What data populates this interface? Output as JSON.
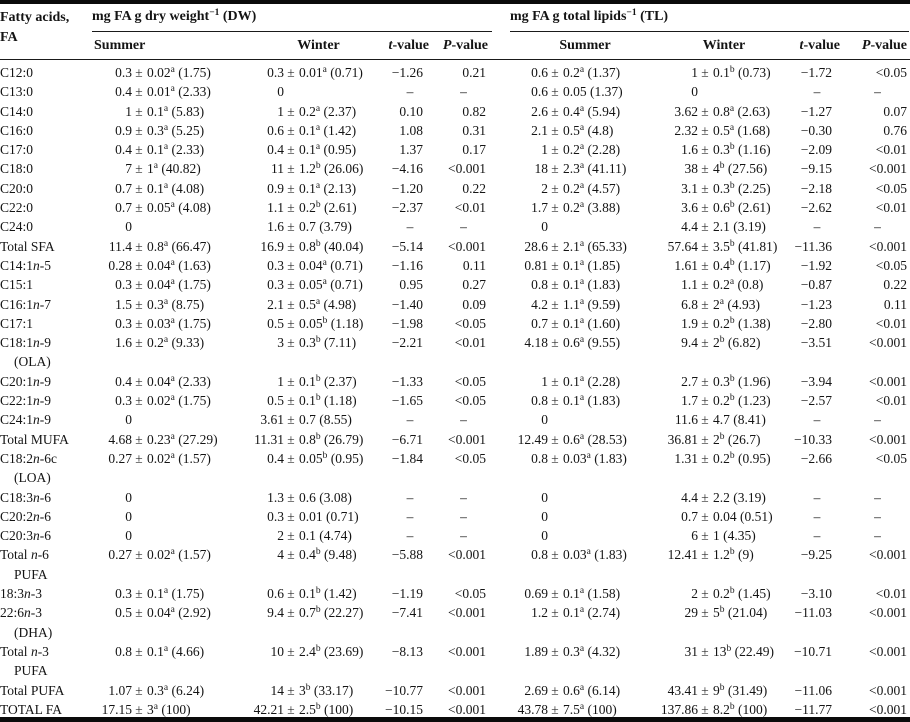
{
  "header": {
    "fa1": "Fatty acids,",
    "fa2": "FA",
    "dw_group": "mg FA g dry weight^−1^ (DW)",
    "tl_group": "mg FA g total lipids^−1^ (TL)",
    "sub": {
      "summer": "Summer",
      "winter": "Winter",
      "t": "*t*-value",
      "p": "*P*-value"
    }
  },
  "rows": [
    {
      "label": "C12:0",
      "dw": [
        "0.3 ± 0.02^a^ (1.75)",
        "0.3 ± 0.01^a^ (0.71)",
        "−1.26",
        "0.21"
      ],
      "tl": [
        "0.6 ± 0.2^a^ (1.37)",
        "1 ± 0.1^b^ (0.73)",
        "−1.72",
        "<0.05"
      ]
    },
    {
      "label": "C13:0",
      "dw": [
        "0.4 ± 0.01^a^ (2.33)",
        "0",
        "–",
        "–"
      ],
      "tl": [
        "0.6 ± 0.05 (1.37)",
        "0",
        "–",
        "–"
      ]
    },
    {
      "label": "C14:0",
      "dw": [
        "1 ± 0.1^a^ (5.83)",
        "1 ± 0.2^a^ (2.37)",
        "0.10",
        "0.82"
      ],
      "tl": [
        "2.6 ± 0.4^a^ (5.94)",
        "3.62 ± 0.8^a^ (2.63)",
        "−1.27",
        "0.07"
      ]
    },
    {
      "label": "C16:0",
      "dw": [
        "0.9 ± 0.3^a^ (5.25)",
        "0.6 ± 0.1^a^ (1.42)",
        "1.08",
        "0.31"
      ],
      "tl": [
        "2.1 ± 0.5^a^ (4.8)",
        "2.32 ± 0.5^a^ (1.68)",
        "−0.30",
        "0.76"
      ]
    },
    {
      "label": "C17:0",
      "dw": [
        "0.4 ± 0.1^a^ (2.33)",
        "0.4 ± 0.1^a^ (0.95)",
        "1.37",
        "0.17"
      ],
      "tl": [
        "1 ± 0.2^a^ (2.28)",
        "1.6 ± 0.3^b^ (1.16)",
        "−2.09",
        "<0.01"
      ]
    },
    {
      "label": "C18:0",
      "dw": [
        "7 ± 1^a^ (40.82)",
        "11 ± 1.2^b^ (26.06)",
        "−4.16",
        "<0.001"
      ],
      "tl": [
        "18 ± 2.3^a^ (41.11)",
        "38 ± 4^b^ (27.56)",
        "−9.15",
        "<0.001"
      ]
    },
    {
      "label": "C20:0",
      "dw": [
        "0.7 ± 0.1^a^ (4.08)",
        "0.9 ± 0.1^a^ (2.13)",
        "−1.20",
        "0.22"
      ],
      "tl": [
        "2 ± 0.2^a^ (4.57)",
        "3.1 ± 0.3^b^ (2.25)",
        "−2.18",
        "<0.05"
      ]
    },
    {
      "label": "C22:0",
      "dw": [
        "0.7 ± 0.05^a^ (4.08)",
        "1.1 ± 0.2^b^ (2.61)",
        "−2.37",
        "<0.01"
      ],
      "tl": [
        "1.7 ± 0.2^a^ (3.88)",
        "3.6 ± 0.6^b^ (2.61)",
        "−2.62",
        "<0.01"
      ]
    },
    {
      "label": "C24:0",
      "dw": [
        "0",
        "1.6 ± 0.7 (3.79)",
        "–",
        "–"
      ],
      "tl": [
        "0",
        "4.4 ± 2.1 (3.19)",
        "–",
        "–"
      ]
    },
    {
      "label": "Total SFA",
      "dw": [
        "11.4 ± 0.8^a^ (66.47)",
        "16.9 ± 0.8^b^ (40.04)",
        "−5.14",
        "<0.001"
      ],
      "tl": [
        "28.6 ± 2.1^a^ (65.33)",
        "57.64 ± 3.5^b^ (41.81)",
        "−11.36",
        "<0.001"
      ]
    },
    {
      "label": "C14:1*n*-5",
      "dw": [
        "0.28 ± 0.04^a^ (1.63)",
        "0.3 ± 0.04^a^ (0.71)",
        "−1.16",
        "0.11"
      ],
      "tl": [
        "0.81 ± 0.1^a^ (1.85)",
        "1.61 ± 0.4^b^ (1.17)",
        "−1.92",
        "<0.05"
      ]
    },
    {
      "label": "C15:1",
      "dw": [
        "0.3 ± 0.04^a^ (1.75)",
        "0.3 ± 0.05^a^ (0.71)",
        "0.95",
        "0.27"
      ],
      "tl": [
        "0.8 ± 0.1^a^ (1.83)",
        "1.1 ± 0.2^a^ (0.8)",
        "−0.87",
        "0.22"
      ]
    },
    {
      "label": "C16:1*n*-7",
      "dw": [
        "1.5 ± 0.3^a^ (8.75)",
        "2.1 ± 0.5^a^ (4.98)",
        "−1.40",
        "0.09"
      ],
      "tl": [
        "4.2 ± 1.1^a^ (9.59)",
        "6.8 ± 2^a^ (4.93)",
        "−1.23",
        "0.11"
      ]
    },
    {
      "label": "C17:1",
      "dw": [
        "0.3 ± 0.03^a^ (1.75)",
        "0.5 ± 0.05^b^ (1.18)",
        "−1.98",
        "<0.05"
      ],
      "tl": [
        "0.7 ± 0.1^a^ (1.60)",
        "1.9 ± 0.2^b^ (1.38)",
        "−2.80",
        "<0.01"
      ]
    },
    {
      "label": "C18:1*n*-9",
      "label2": "(OLA)",
      "dw": [
        "1.6 ± 0.2^a^ (9.33)",
        "3 ± 0.3^b^ (7.11)",
        "−2.21",
        "<0.01"
      ],
      "tl": [
        "4.18 ± 0.6^a^ (9.55)",
        "9.4 ± 2^b^ (6.82)",
        "−3.51",
        "<0.001"
      ]
    },
    {
      "label": "C20:1*n*-9",
      "dw": [
        "0.4 ± 0.04^a^ (2.33)",
        "1 ± 0.1^b^ (2.37)",
        "−1.33",
        "<0.05"
      ],
      "tl": [
        "1 ± 0.1^a^ (2.28)",
        "2.7 ± 0.3^b^ (1.96)",
        "−3.94",
        "<0.001"
      ]
    },
    {
      "label": "C22:1*n*-9",
      "dw": [
        "0.3 ± 0.02^a^ (1.75)",
        "0.5 ± 0.1^b^ (1.18)",
        "−1.65",
        "<0.05"
      ],
      "tl": [
        "0.8 ± 0.1^a^ (1.83)",
        "1.7 ± 0.2^b^ (1.23)",
        "−2.57",
        "<0.01"
      ]
    },
    {
      "label": "C24:1*n*-9",
      "dw": [
        "0",
        "3.61 ± 0.7 (8.55)",
        "–",
        "–"
      ],
      "tl": [
        "0",
        "11.6 ± 4.7 (8.41)",
        "–",
        "–"
      ]
    },
    {
      "label": "Total MUFA",
      "dw": [
        "4.68 ± 0.23^a^ (27.29)",
        "11.31 ± 0.8^b^ (26.79)",
        "−6.71",
        "<0.001"
      ],
      "tl": [
        "12.49 ± 0.6^a^ (28.53)",
        "36.81 ± 2^b^ (26.7)",
        "−10.33",
        "<0.001"
      ]
    },
    {
      "label": "C18:2*n*-6c",
      "label2": "(LOA)",
      "dw": [
        "0.27 ± 0.02^a^ (1.57)",
        "0.4 ± 0.05^b^ (0.95)",
        "−1.84",
        "<0.05"
      ],
      "tl": [
        "0.8 ± 0.03^a^ (1.83)",
        "1.31 ± 0.2^b^ (0.95)",
        "−2.66",
        "<0.05"
      ]
    },
    {
      "label": "C18:3*n*-6",
      "dw": [
        "0",
        "1.3 ± 0.6 (3.08)",
        "–",
        "–"
      ],
      "tl": [
        "0",
        "4.4 ± 2.2 (3.19)",
        "–",
        "–"
      ]
    },
    {
      "label": "C20:2*n*-6",
      "dw": [
        "0",
        "0.3 ± 0.01 (0.71)",
        "–",
        "–"
      ],
      "tl": [
        "0",
        "0.7 ± 0.04 (0.51)",
        "–",
        "–"
      ]
    },
    {
      "label": "C20:3*n*-6",
      "dw": [
        "0",
        "2 ± 0.1 (4.74)",
        "–",
        "–"
      ],
      "tl": [
        "0",
        "6 ± 1 (4.35)",
        "–",
        "–"
      ]
    },
    {
      "label": "Total *n*-6",
      "label2": "PUFA",
      "dw": [
        "0.27 ± 0.02^a^ (1.57)",
        "4 ± 0.4^b^ (9.48)",
        "−5.88",
        "<0.001"
      ],
      "tl": [
        "0.8 ± 0.03^a^ (1.83)",
        "12.41 ± 1.2^b^ (9)",
        "−9.25",
        "<0.001"
      ]
    },
    {
      "label": "18:3*n*-3",
      "dw": [
        "0.3 ± 0.1^a^ (1.75)",
        "0.6 ± 0.1^b^ (1.42)",
        "−1.19",
        "<0.05"
      ],
      "tl": [
        "0.69 ± 0.1^a^ (1.58)",
        "2 ± 0.2^b^ (1.45)",
        "−3.10",
        "<0.01"
      ]
    },
    {
      "label": "22:6*n*-3",
      "label2": "(DHA)",
      "dw": [
        "0.5 ± 0.04^a^ (2.92)",
        "9.4 ± 0.7^b^ (22.27)",
        "−7.41",
        "<0.001"
      ],
      "tl": [
        "1.2 ± 0.1^a^ (2.74)",
        "29 ± 5^b^ (21.04)",
        "−11.03",
        "<0.001"
      ]
    },
    {
      "label": "Total *n*-3",
      "label2": "PUFA",
      "dw": [
        "0.8 ± 0.1^a^ (4.66)",
        "10 ± 2.4^b^ (23.69)",
        "−8.13",
        "<0.001"
      ],
      "tl": [
        "1.89 ± 0.3^a^ (4.32)",
        "31 ± 13^b^ (22.49)",
        "−10.71",
        "<0.001"
      ]
    },
    {
      "label": "Total PUFA",
      "dw": [
        "1.07 ± 0.3^a^ (6.24)",
        "14 ± 3^b^ (33.17)",
        "−10.77",
        "<0.001"
      ],
      "tl": [
        "2.69 ± 0.6^a^ (6.14)",
        "43.41 ± 9^b^ (31.49)",
        "−11.06",
        "<0.001"
      ]
    },
    {
      "label": "TOTAL FA",
      "dw": [
        "17.15 ± 3^a^ (100)",
        "42.21 ± 2.5^b^ (100)",
        "−10.15",
        "<0.001"
      ],
      "tl": [
        "43.78 ± 7.5^a^ (100)",
        "137.86 ± 8.2^b^ (100)",
        "−11.77",
        "<0.001"
      ]
    }
  ]
}
